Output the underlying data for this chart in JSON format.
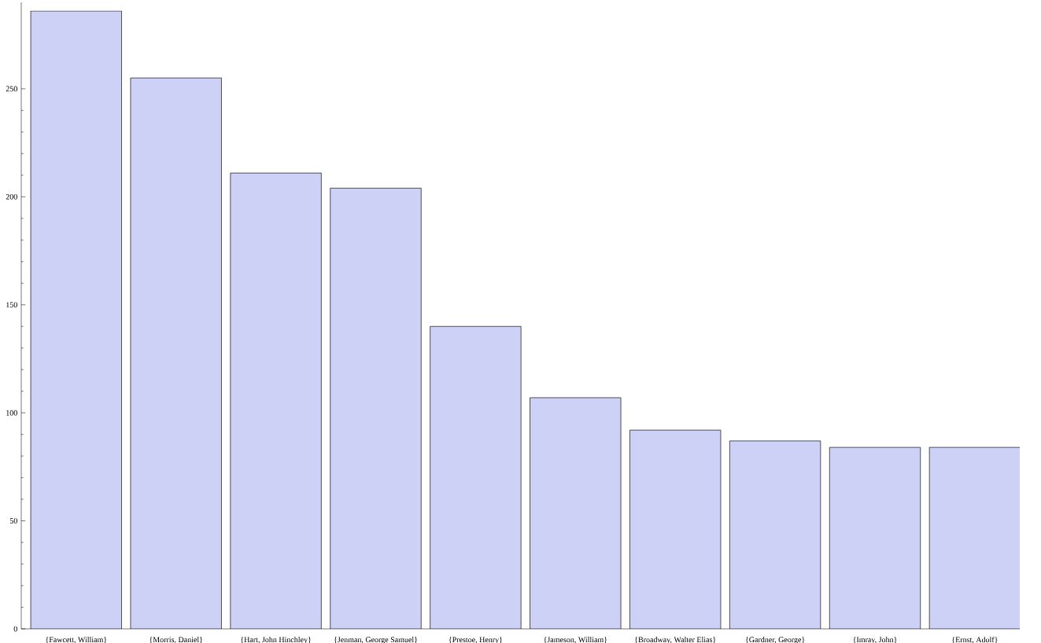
{
  "chart_data": {
    "type": "bar",
    "categories": [
      "{Fawcett, William}",
      "{Morris, Daniel}",
      "{Hart, John Hinchley}",
      "{Jenman, George Samuel}",
      "{Prestoe, Henry}",
      "{Jameson, William}",
      "{Broadway, Walter Elias}",
      "{Gardner, George}",
      "{Imray, John}",
      "{Ernst, Adolf}"
    ],
    "values": [
      286,
      255,
      211,
      204,
      140,
      107,
      92,
      87,
      84,
      84
    ],
    "color": "#ccd1f5",
    "ylim": [
      0,
      290
    ],
    "yticks": [
      0,
      50,
      100,
      150,
      200,
      250
    ],
    "grid": false
  }
}
